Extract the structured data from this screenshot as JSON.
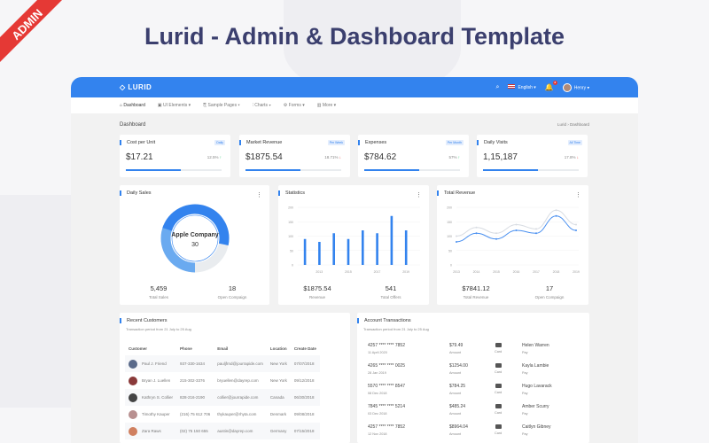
{
  "promo": {
    "headline": "Lurid - Admin & Dashboard Template",
    "ribbon": "ADMIN"
  },
  "header": {
    "logo": "LURID",
    "language": "English",
    "notifications": "3",
    "user": "Henry",
    "colors": {
      "brand": "#3383ee"
    }
  },
  "nav": [
    {
      "label": "Dashboard",
      "icon": "home-icon"
    },
    {
      "label": "UI Elements",
      "icon": "layers-icon"
    },
    {
      "label": "Sample Pages",
      "icon": "pages-icon"
    },
    {
      "label": "Charts",
      "icon": "chart-icon"
    },
    {
      "label": "Forms",
      "icon": "form-icon"
    },
    {
      "label": "More",
      "icon": "more-icon"
    }
  ],
  "page": {
    "title": "Dashboard",
    "breadcrumb": [
      "Lurid",
      "Dashboard"
    ]
  },
  "stats": [
    {
      "title": "Cost per Unit",
      "badge": "Daily",
      "value": "$17.21",
      "change": "12.5%",
      "trend": "up",
      "progress": 57
    },
    {
      "title": "Market Revenue",
      "badge": "Per Week",
      "value": "$1875.54",
      "change": "18.71%",
      "trend": "down",
      "progress": 57
    },
    {
      "title": "Expenses",
      "badge": "Per Month",
      "value": "$784.62",
      "change": "57%",
      "trend": "up",
      "progress": 57
    },
    {
      "title": "Daily Visits",
      "badge": "All Time",
      "value": "1,15,187",
      "change": "17.8%",
      "trend": "down",
      "progress": 57
    }
  ],
  "daily_sales": {
    "title": "Daily Sales",
    "center_label": "Apple Company",
    "center_value": "30",
    "stats": [
      {
        "value": "5,459",
        "label": "Total Sales"
      },
      {
        "value": "18",
        "label": "Open Compaign"
      }
    ]
  },
  "statistics": {
    "title": "Statistics",
    "stats": [
      {
        "value": "$1875.54",
        "label": "Revenue"
      },
      {
        "value": "541",
        "label": "Total Offers"
      }
    ]
  },
  "total_revenue": {
    "title": "Total Revenue",
    "stats": [
      {
        "value": "$7841.12",
        "label": "Total Revenue"
      },
      {
        "value": "17",
        "label": "Open Compaign"
      }
    ]
  },
  "chart_data": [
    {
      "type": "bar",
      "values": [
        90,
        80,
        110,
        90,
        120,
        110,
        170,
        120
      ],
      "x_tick_labels": [
        "2013",
        "2015",
        "2017",
        "2019"
      ],
      "y_ticks": [
        0,
        50,
        100,
        150,
        200
      ],
      "ylim": [
        0,
        200
      ]
    },
    {
      "type": "line",
      "categories": [
        "2013",
        "2014",
        "2015",
        "2016",
        "2017",
        "2018",
        "2019"
      ],
      "series": [
        {
          "values": [
            80,
            110,
            90,
            120,
            110,
            170,
            120
          ],
          "color": "#4a90f0"
        },
        {
          "values": [
            100,
            130,
            110,
            140,
            125,
            190,
            140
          ],
          "color": "#d8dce2"
        }
      ],
      "y_ticks": [
        0,
        50,
        100,
        150,
        200
      ],
      "ylim": [
        0,
        200
      ]
    }
  ],
  "customers": {
    "title": "Recent Customers",
    "subtitle": "Transaction period from 21 July to 25 Aug",
    "columns": [
      "Customer",
      "Phone",
      "Email",
      "Location",
      "Create Date"
    ],
    "rows": [
      [
        "Paul J. Friend",
        "937-330-1634",
        "pauljfrnd@jourrapide.com",
        "New York",
        "07/07/2018"
      ],
      [
        "Bryan J. Luellen",
        "215-302-3376",
        "bryuellen@dayrep.com",
        "New York",
        "09/12/2018"
      ],
      [
        "Kathryn S. Collier",
        "828-216-2190",
        "collier@jourrapide.com",
        "Canada",
        "06/30/2018"
      ],
      [
        "Timothy Kauper",
        "(216) 75 612 706",
        "thykauper@rhyta.com",
        "Denmark",
        "09/08/2018"
      ],
      [
        "Zara Raws",
        "(02) 75 150 655",
        "austin@dayrep.com",
        "Germany",
        "07/15/2018"
      ]
    ]
  },
  "transactions": {
    "title": "Account Transactions",
    "subtitle": "Transaction period from 21 July to 25 Aug",
    "amount_label": "Amount",
    "card_label": "Card",
    "pay_label": "Pay",
    "rows": [
      [
        "4257 **** **** 7852",
        "11 April 2020",
        "$79.49",
        "Helen Warren"
      ],
      [
        "4265 **** **** 0025",
        "28 Jan 2019",
        "$1254.00",
        "Kayla Lambie"
      ],
      [
        "5570 **** **** 8547",
        "08 Dec 2018",
        "$784.25",
        "Hugo Lavarack"
      ],
      [
        "7845 **** **** 5214",
        "03 Dec 2018",
        "$485.24",
        "Amber Scurry"
      ],
      [
        "4257 **** **** 7852",
        "12 Nov 2018",
        "$8964.04",
        "Caitlyn Gibney"
      ]
    ]
  }
}
